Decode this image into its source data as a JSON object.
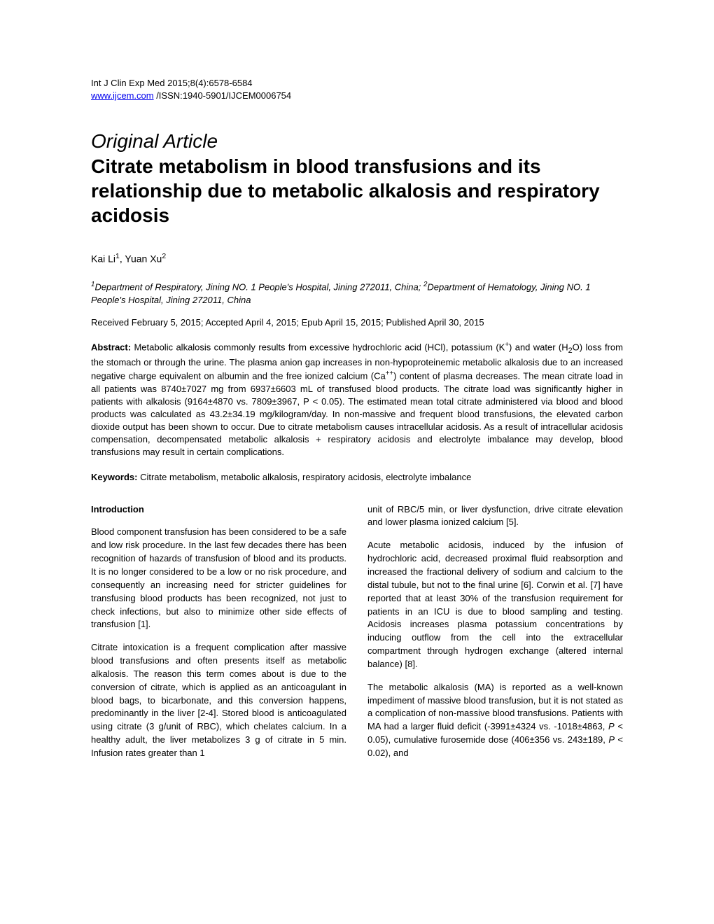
{
  "header": {
    "journal_line": "Int J Clin Exp Med 2015;8(4):6578-6584",
    "url": "www.ijcem.com",
    "issn_line": " /ISSN:1940-5901/IJCEM0006754"
  },
  "article_type": "Original Article",
  "title": "Citrate metabolism in blood transfusions and its relationship due to metabolic alkalosis and respiratory acidosis",
  "authors": {
    "author1_name": "Kai Li",
    "author1_sup": "1",
    "author2_name": ", Yuan Xu",
    "author2_sup": "2"
  },
  "affiliations": {
    "aff1_sup": "1",
    "aff1_text": "Department of Respiratory, Jining NO. 1 People's Hospital, Jining 272011, China; ",
    "aff2_sup": "2",
    "aff2_text": "Department of Hematology, Jining NO. 1 People's Hospital, Jining 272011, China"
  },
  "dates": "Received February 5, 2015; Accepted April 4, 2015; Epub April 15, 2015; Published April 30, 2015",
  "abstract": {
    "label": "Abstract:",
    "text_pre": " Metabolic alkalosis commonly results from excessive hydrochloric acid (HCl), potassium (K",
    "text_pre2": ") and water (H",
    "text_pre3": "O) loss from the stomach or through the urine. The plasma anion gap increases in non-hypoproteinemic metabolic alkalosis due to an increased negative charge equivalent on albumin and the free ionized calcium (Ca",
    "text_post": ") content of plasma decreases. The mean citrate load in all patients was 8740±7027 mg from 6937±6603 mL of transfused blood products. The citrate load was significantly higher in patients with alkalosis (9164±4870 vs. 7809±3967, P < 0.05). The estimated mean total citrate administered via blood and blood products was calculated as 43.2±34.19 mg/kilogram/day. In non-massive and frequent blood transfusions, the elevated carbon dioxide output has been shown to occur. Due to citrate metabolism causes intracellular acidosis. As a result of intracellular acidosis compensation, decompensated metabolic alkalosis + respiratory acidosis and electrolyte imbalance may develop, blood transfusions may result in certain complications."
  },
  "keywords": {
    "label": "Keywords:",
    "text": " Citrate metabolism, metabolic alkalosis, respiratory acidosis, electrolyte imbalance"
  },
  "body": {
    "intro_heading": "Introduction",
    "left_p1": "Blood component transfusion has been considered to be a safe and low risk procedure. In the last few decades there has been recognition of hazards of transfusion of blood and its products. It is no longer considered to be a low or no risk procedure, and consequently an increasing need for stricter guidelines for transfusing blood products has been recognized, not just to check infections, but also to minimize other side effects of transfusion [1].",
    "left_p2": "Citrate intoxication is a frequent complication after massive blood transfusions and often presents itself as metabolic alkalosis. The reason this term comes about is due to the conversion of citrate, which is applied as an anticoagulant in blood bags, to bicarbonate, and this conversion happens, predominantly in the liver [2-4]. Stored blood is anticoagulated using citrate (3 g/unit of RBC), which chelates calcium. In a healthy adult, the liver metabolizes 3 g of citrate in 5 min. Infusion rates greater than 1",
    "right_p1": "unit of RBC/5 min, or liver dysfunction, drive citrate elevation and lower plasma ionized calcium [5].",
    "right_p2": "Acute metabolic acidosis, induced by the infusion of hydrochloric acid, decreased proximal fluid reabsorption and increased the fractional delivery of sodium and calcium to the distal tubule, but not to the final urine [6]. Corwin et al. [7] have reported that at least 30% of the transfusion requirement for patients in an ICU is due to blood sampling and testing. Acidosis increases plasma potassium concentrations by inducing outflow from the cell into the extracellular compartment through hydrogen exchange (altered internal balance) [8].",
    "right_p3_pre": "The metabolic alkalosis (MA) is reported as a well-known impediment of massive blood transfusion, but it is not stated as a complication of non-massive blood transfusions. Patients with MA had a larger fluid deficit (-3991±4324 vs. -1018±4863, ",
    "right_p3_p1": "P",
    "right_p3_mid": " < 0.05), cumulative furosemide dose (406±356 vs. 243±189, ",
    "right_p3_p2": "P",
    "right_p3_post": " < 0.02), and"
  }
}
